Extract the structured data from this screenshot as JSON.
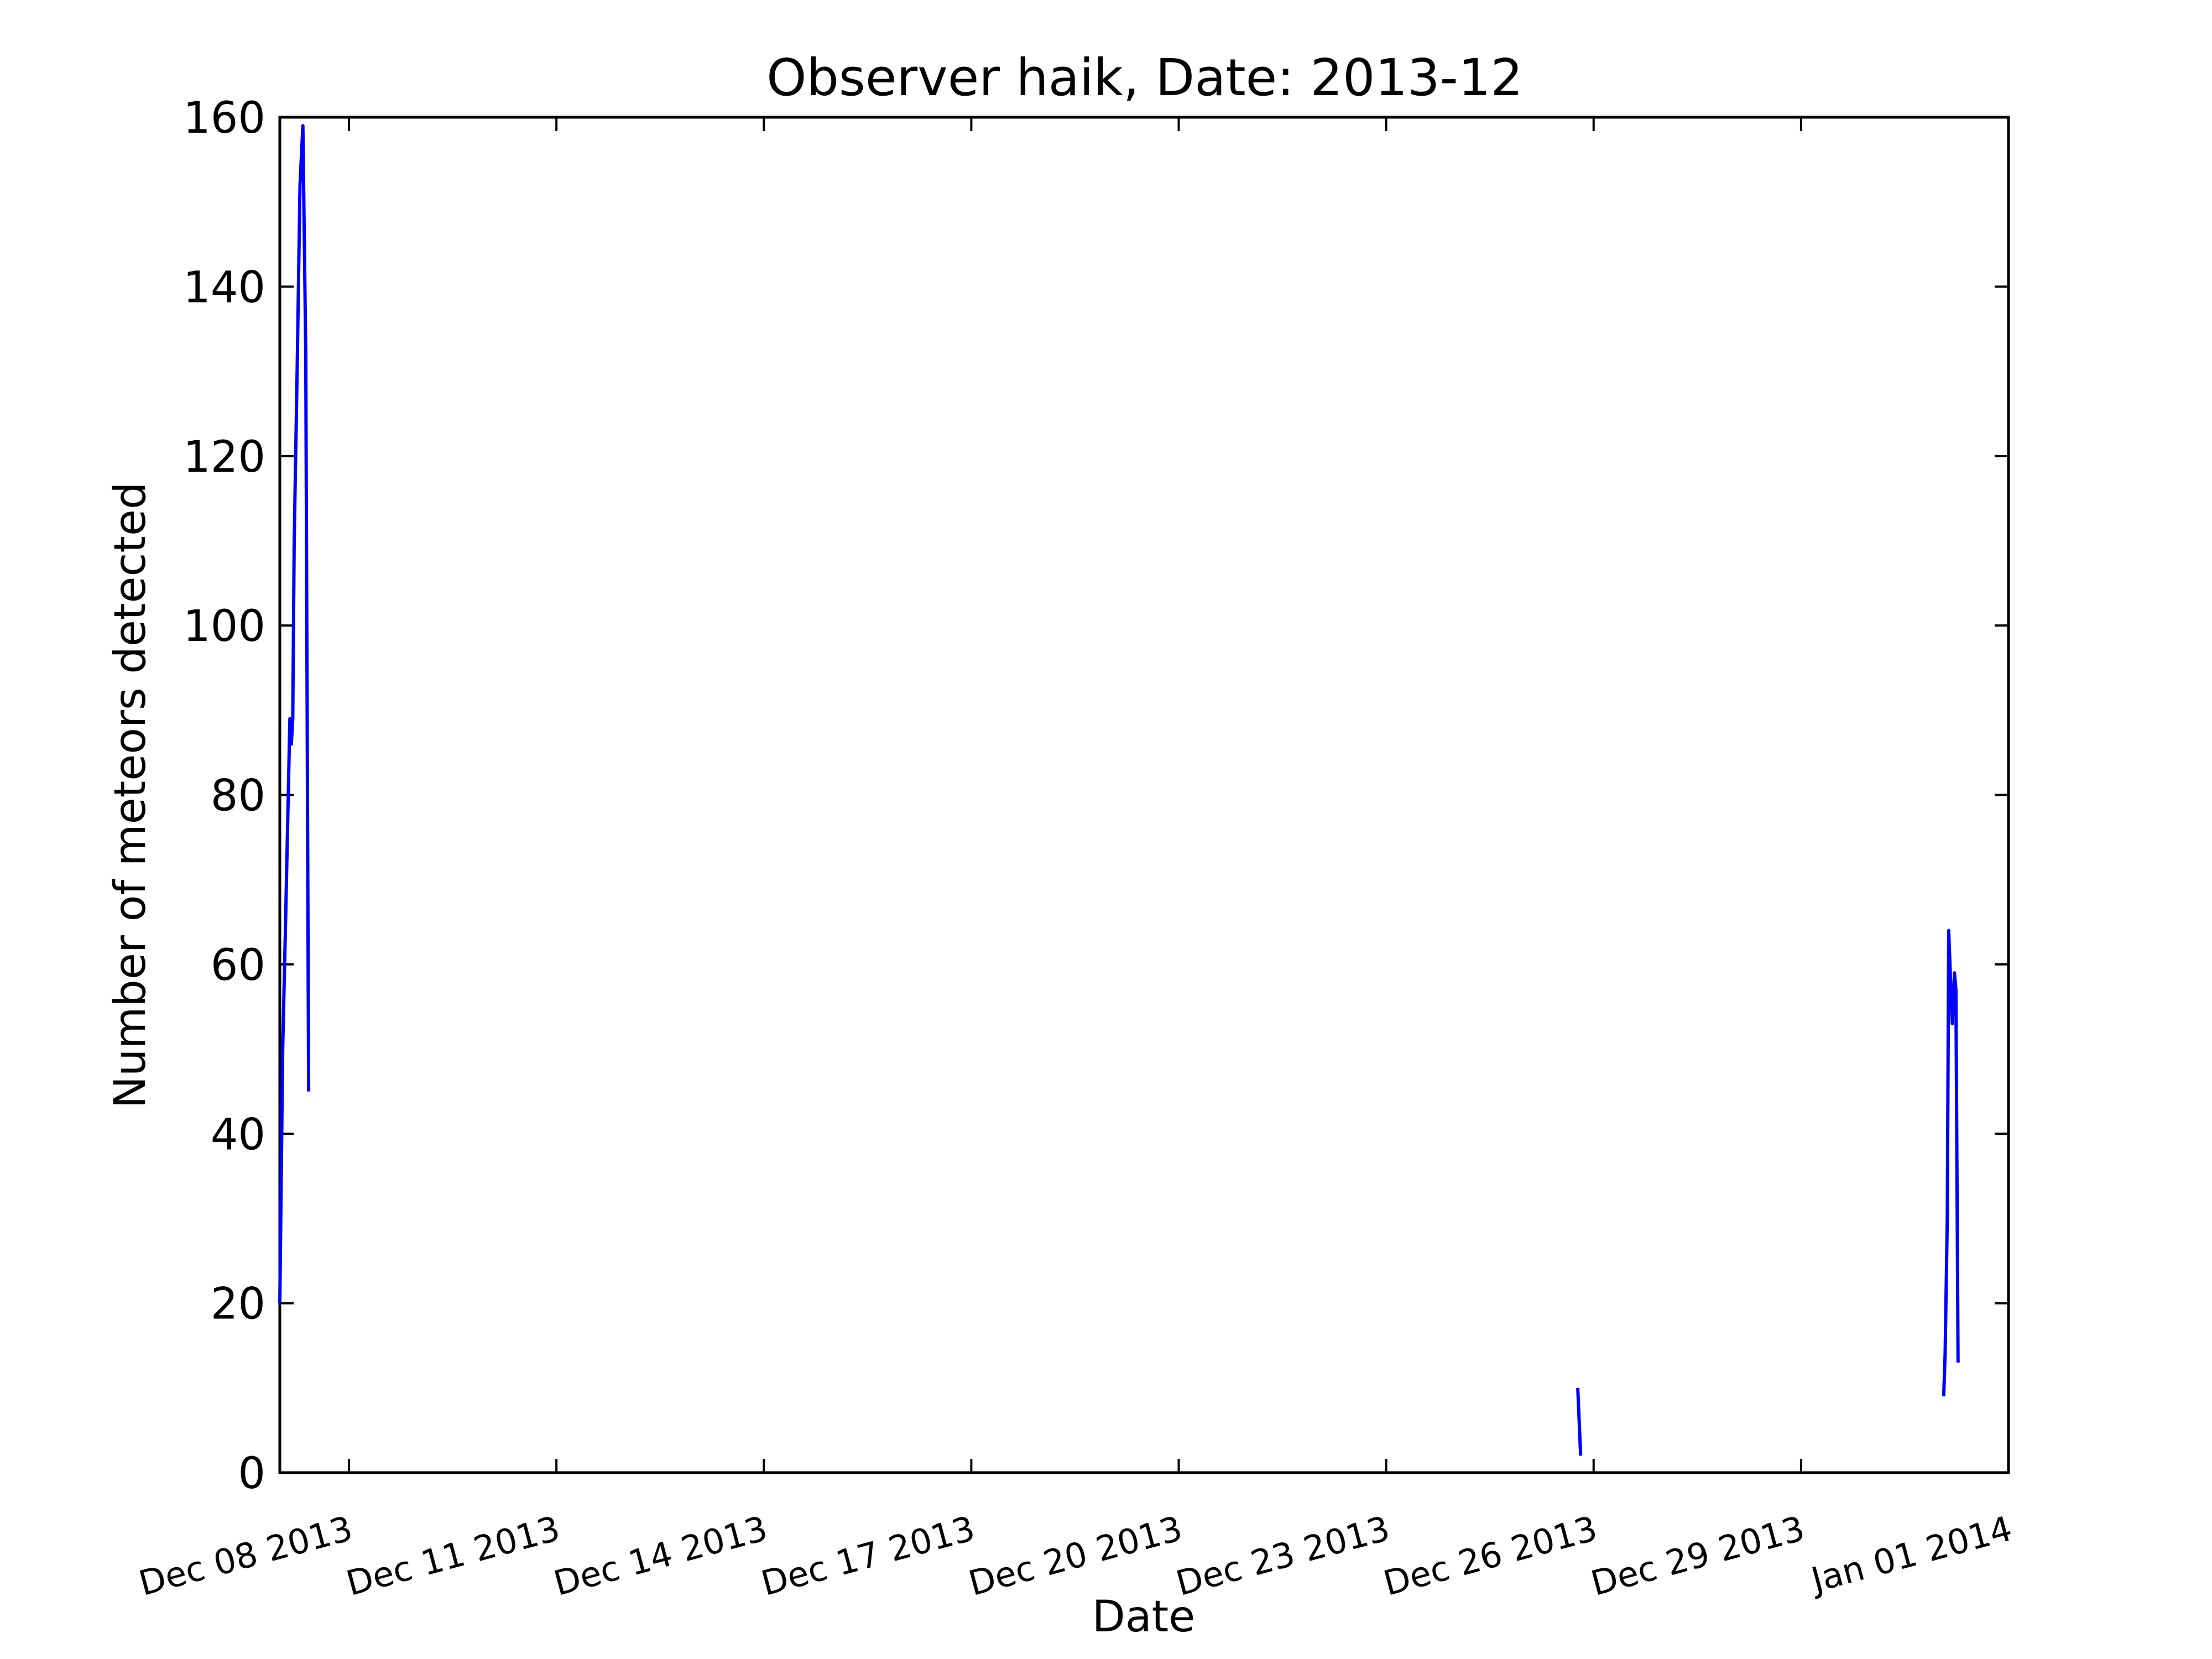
{
  "chart_data": {
    "type": "line",
    "title": "Observer haik, Date: 2013-12",
    "xlabel": "Date",
    "ylabel": "Number of meteors detected",
    "xlim": [
      "2013-12-07T00:00",
      "2014-01-01T00:00"
    ],
    "ylim": [
      0,
      160
    ],
    "yticks": [
      0,
      20,
      40,
      60,
      80,
      100,
      120,
      140,
      160
    ],
    "xticks": [
      {
        "date": "2013-12-08T00:00",
        "label": "Dec 08 2013"
      },
      {
        "date": "2013-12-11T00:00",
        "label": "Dec 11 2013"
      },
      {
        "date": "2013-12-14T00:00",
        "label": "Dec 14 2013"
      },
      {
        "date": "2013-12-17T00:00",
        "label": "Dec 17 2013"
      },
      {
        "date": "2013-12-20T00:00",
        "label": "Dec 20 2013"
      },
      {
        "date": "2013-12-23T00:00",
        "label": "Dec 23 2013"
      },
      {
        "date": "2013-12-26T00:00",
        "label": "Dec 26 2013"
      },
      {
        "date": "2013-12-29T00:00",
        "label": "Dec 29 2013"
      },
      {
        "date": "2014-01-01T00:00",
        "label": "Jan 01 2014"
      }
    ],
    "grid": false,
    "series_color": "#0000ff",
    "segments": [
      {
        "points": [
          {
            "x": "2013-12-07T00:00",
            "y": 20
          },
          {
            "x": "2013-12-07T01:00",
            "y": 50
          },
          {
            "x": "2013-12-07T02:00",
            "y": 65
          },
          {
            "x": "2013-12-07T03:30",
            "y": 89
          },
          {
            "x": "2013-12-07T04:00",
            "y": 86
          },
          {
            "x": "2013-12-07T04:30",
            "y": 89
          },
          {
            "x": "2013-12-07T05:00",
            "y": 110
          },
          {
            "x": "2013-12-07T06:00",
            "y": 130
          },
          {
            "x": "2013-12-07T07:00",
            "y": 152
          },
          {
            "x": "2013-12-07T08:00",
            "y": 159
          },
          {
            "x": "2013-12-07T09:00",
            "y": 132
          },
          {
            "x": "2013-12-07T10:00",
            "y": 45
          }
        ]
      },
      {
        "points": [
          {
            "x": "2013-12-25T18:30",
            "y": 10
          },
          {
            "x": "2013-12-25T19:30",
            "y": 2
          }
        ]
      },
      {
        "points": [
          {
            "x": "2013-12-31T01:30",
            "y": 9
          },
          {
            "x": "2013-12-31T02:00",
            "y": 14
          },
          {
            "x": "2013-12-31T02:45",
            "y": 30
          },
          {
            "x": "2013-12-31T03:15",
            "y": 64
          },
          {
            "x": "2013-12-31T04:00",
            "y": 57
          },
          {
            "x": "2013-12-31T04:30",
            "y": 53
          },
          {
            "x": "2013-12-31T05:15",
            "y": 59
          },
          {
            "x": "2013-12-31T05:45",
            "y": 57
          },
          {
            "x": "2013-12-31T06:30",
            "y": 13
          }
        ]
      }
    ]
  }
}
